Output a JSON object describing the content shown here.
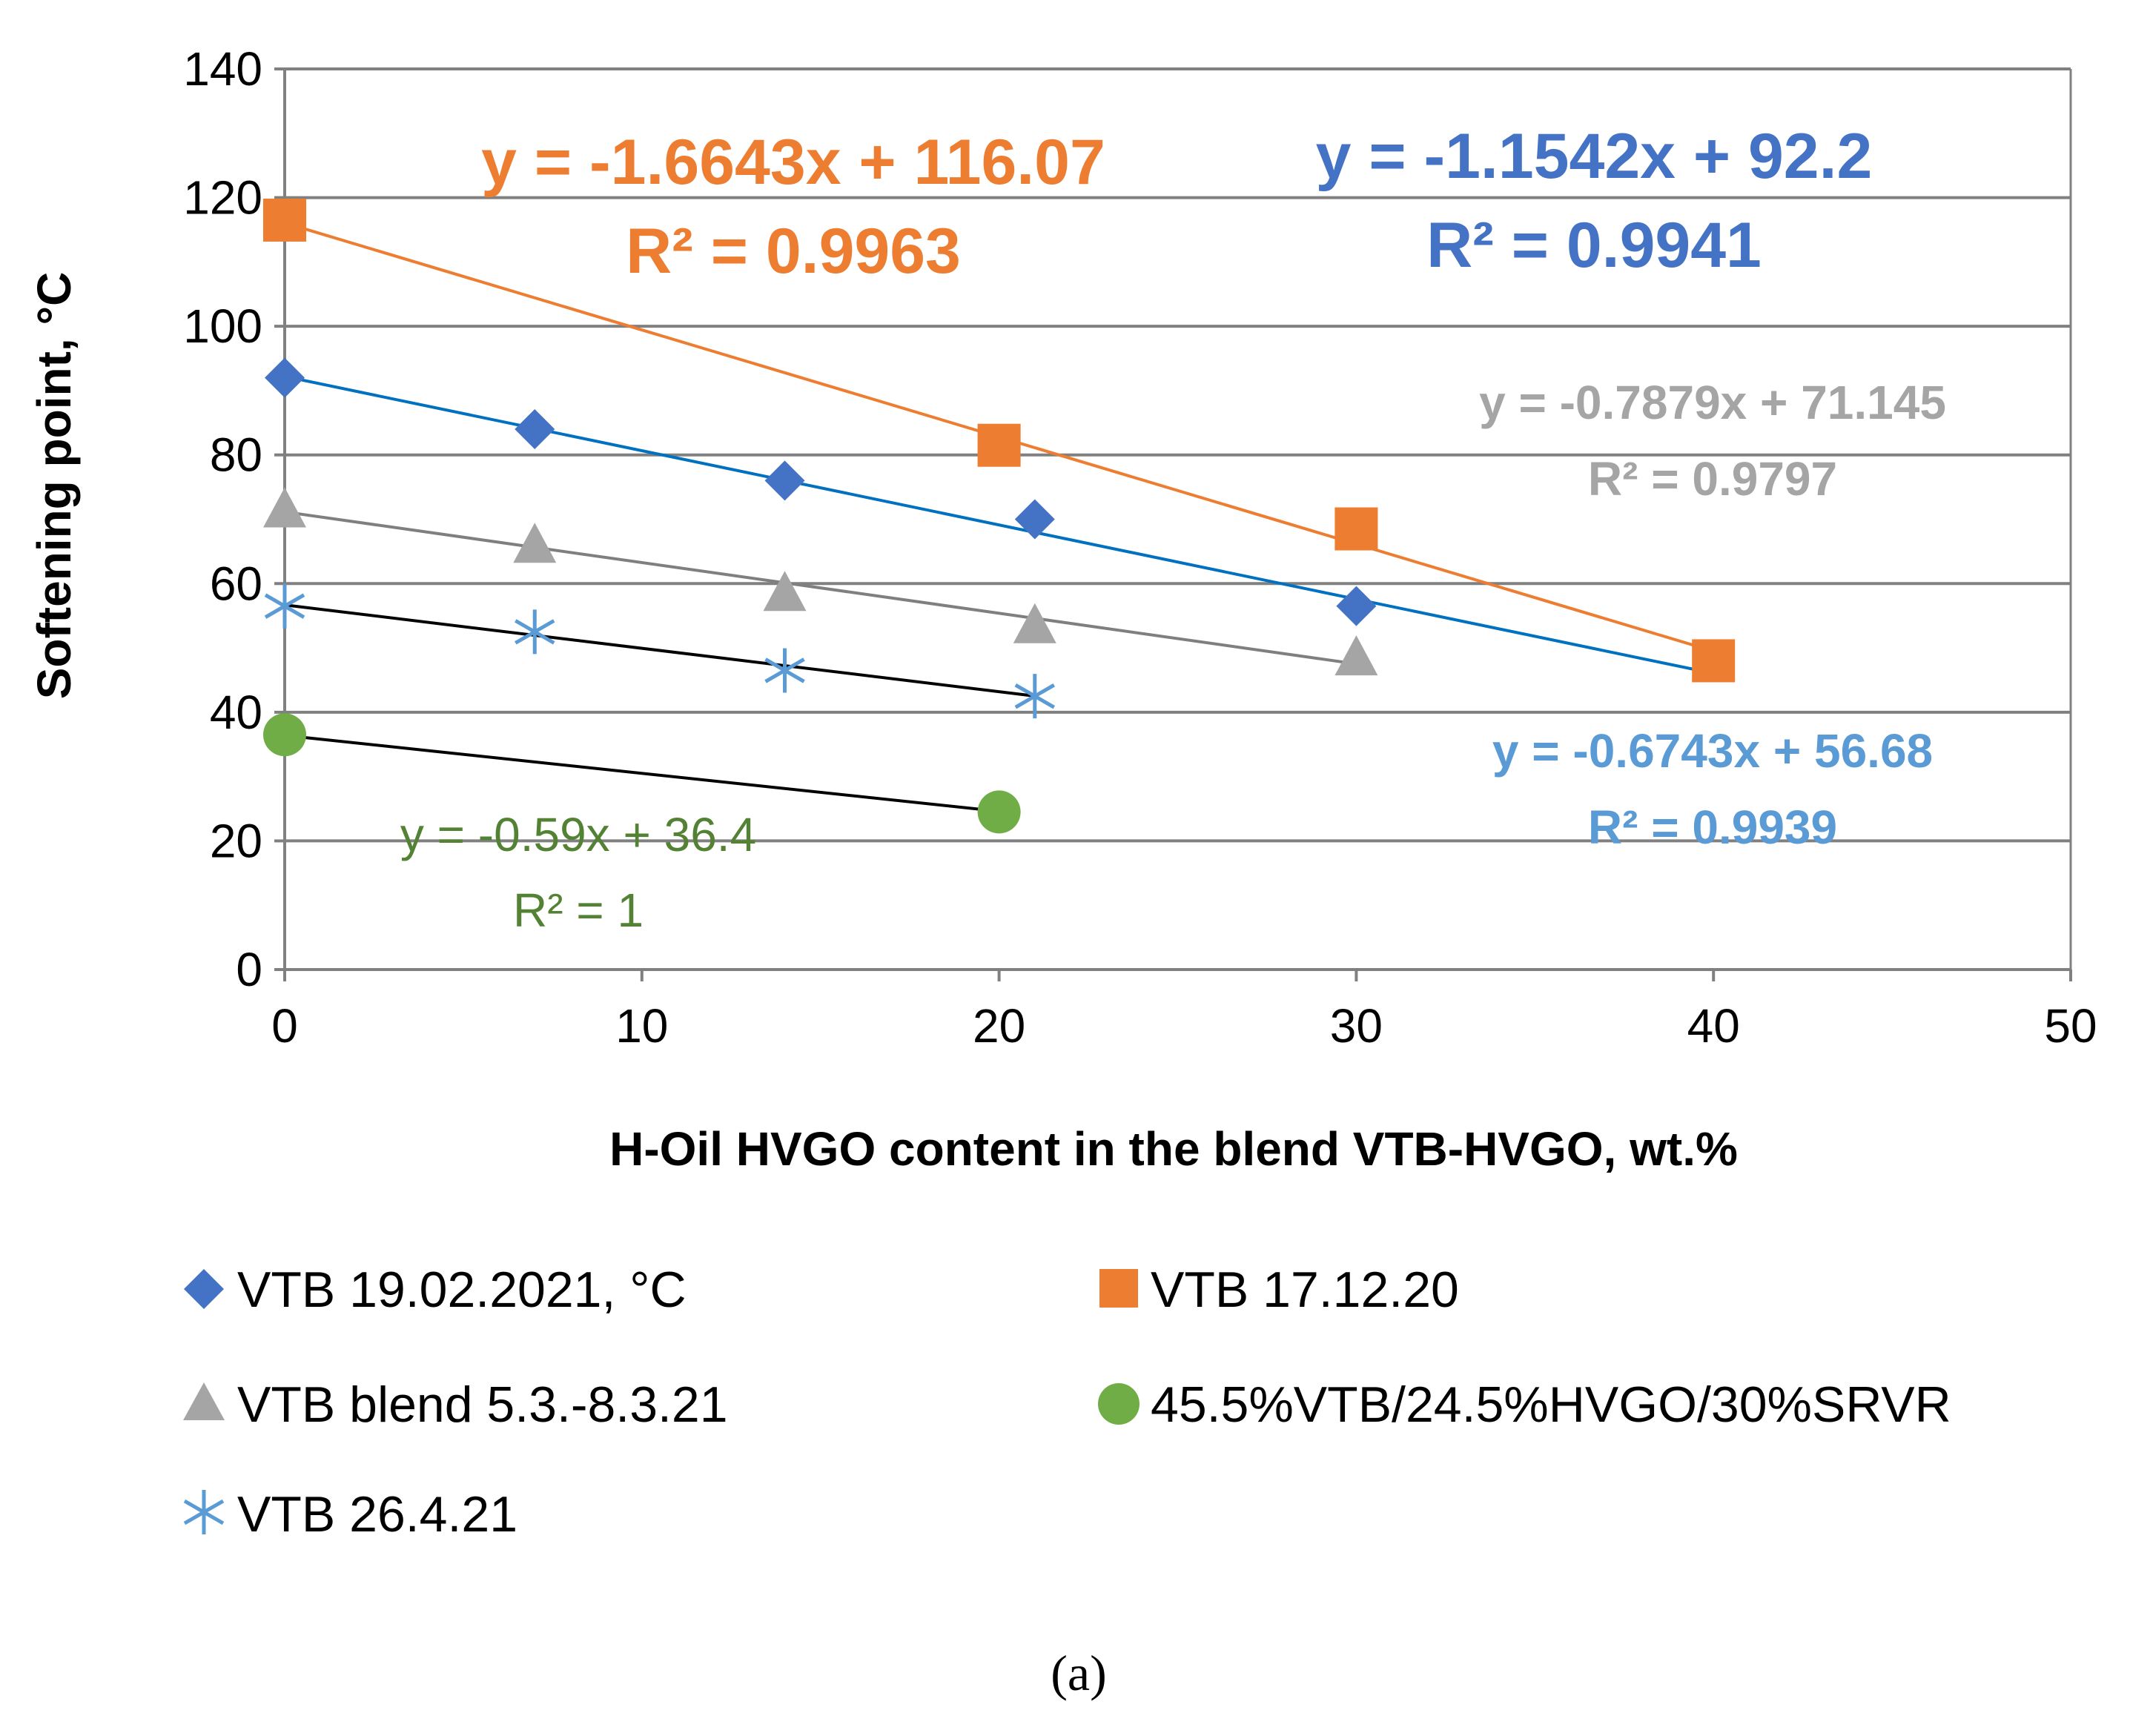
{
  "chart_data": {
    "type": "scatter",
    "title": "",
    "xlabel": "H-Oil HVGO content in the blend VTB-HVGO, wt.%",
    "ylabel": "Softening point, °C",
    "xlim": [
      0,
      50
    ],
    "ylim": [
      0,
      140
    ],
    "x_ticks": [
      0,
      10,
      20,
      30,
      40,
      50
    ],
    "y_ticks": [
      0,
      20,
      40,
      60,
      80,
      100,
      120,
      140
    ],
    "x_tick_labels": [
      "0",
      "10",
      "20",
      "30",
      "40",
      "50"
    ],
    "y_tick_labels": [
      "0",
      "20",
      "40",
      "60",
      "80",
      "100",
      "120",
      "140"
    ],
    "grid": "horizontal",
    "legend_position": "bottom",
    "caption": "(a)",
    "series": [
      {
        "name": "VTB 19.02.2021, °C",
        "marker": "diamond",
        "color": "#4472C4",
        "trend_color": "#0070C0",
        "x": [
          0,
          7,
          14,
          21,
          30
        ],
        "y": [
          92,
          84,
          76,
          70,
          56.5
        ],
        "trendline": {
          "slope": -1.1542,
          "intercept": 92.2,
          "x_range": [
            0,
            40
          ]
        },
        "equation": "y = -1.1542x + 92.2",
        "r2": "R² = 0.9941"
      },
      {
        "name": "VTB 17.12.20",
        "marker": "square",
        "color": "#ED7D31",
        "trend_color": "#ED7D31",
        "x": [
          0,
          20,
          30,
          40
        ],
        "y": [
          116.5,
          81.5,
          68.5,
          48
        ],
        "trendline": {
          "slope": -1.6643,
          "intercept": 116.07,
          "x_range": [
            0,
            40
          ]
        },
        "equation": "y = -1.6643x + 116.07",
        "r2": "R² = 0.9963"
      },
      {
        "name": "VTB blend 5.3.-8.3.21",
        "marker": "triangle",
        "color": "#A5A5A5",
        "trend_color": "#7F7F7F",
        "x": [
          0,
          7,
          14,
          21,
          30
        ],
        "y": [
          71.5,
          66,
          58.5,
          53.5,
          48.5
        ],
        "trendline": {
          "slope": -0.7879,
          "intercept": 71.145,
          "x_range": [
            0,
            30
          ]
        },
        "equation": "y = -0.7879x + 71.145",
        "r2": "R² = 0.9797"
      },
      {
        "name": "45.5%VTB/24.5%HVGO/30%SRVR",
        "marker": "circle",
        "color": "#70AD47",
        "trend_color": "#000000",
        "x": [
          0,
          20
        ],
        "y": [
          36.5,
          24.5
        ],
        "trendline": {
          "slope": -0.59,
          "intercept": 36.4,
          "x_range": [
            0,
            20
          ]
        },
        "equation": "y = -0.59x + 36.4",
        "r2": "R² = 1"
      },
      {
        "name": "VTB 26.4.21",
        "marker": "asterisk",
        "color": "#5B9BD5",
        "trend_color": "#000000",
        "x": [
          0,
          7,
          14,
          21
        ],
        "y": [
          56.5,
          52.5,
          46.5,
          42.5
        ],
        "trendline": {
          "slope": -0.6743,
          "intercept": 56.68,
          "x_range": [
            0,
            21
          ]
        },
        "equation": "y = -0.6743x + 56.68",
        "r2": "R² = 0.9939"
      }
    ]
  },
  "colors": {
    "eq_orange": "#ED7D31",
    "eq_blue": "#4472C4",
    "eq_gray": "#A5A5A5",
    "eq_green": "#548235",
    "eq_lightblue": "#5B9BD5",
    "grid": "#808080",
    "axis": "#808080"
  }
}
